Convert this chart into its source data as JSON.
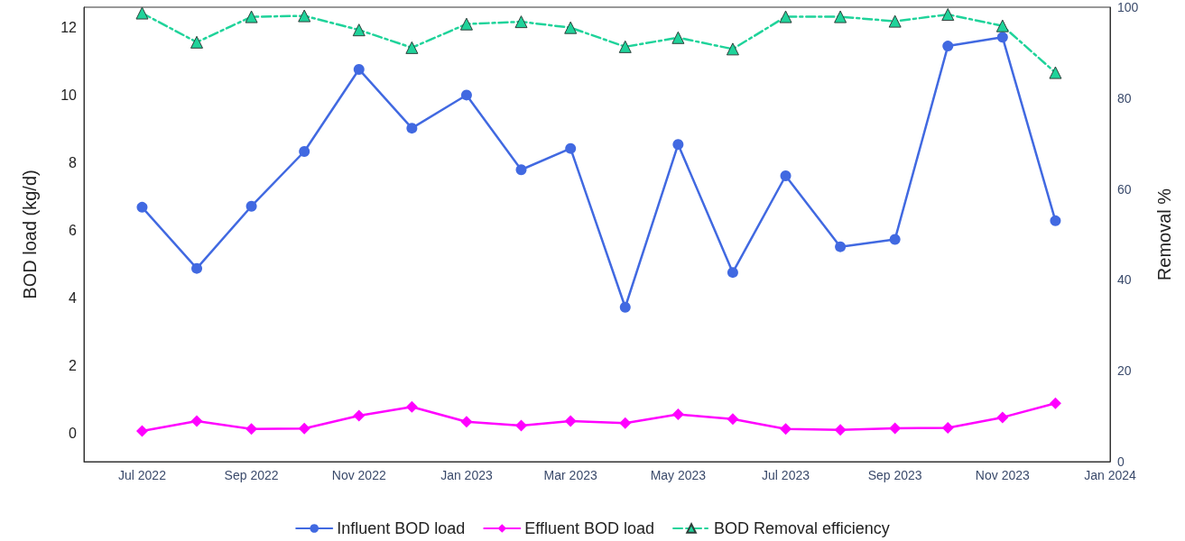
{
  "chart_data": {
    "type": "line",
    "ylabel": "BOD load (kg/d)",
    "y2label": "Removal %",
    "x": [
      "2022-07",
      "2022-08",
      "2022-09",
      "2022-10",
      "2022-11",
      "2022-12",
      "2023-01",
      "2023-02",
      "2023-03",
      "2023-04",
      "2023-05",
      "2023-06",
      "2023-07",
      "2023-08",
      "2023-09",
      "2023-10",
      "2023-11",
      "2023-12"
    ],
    "xlim": [
      "2022-05-29",
      "2024-01-01"
    ],
    "xticks": [
      {
        "value": "2022-07",
        "label": "Jul 2022"
      },
      {
        "value": "2022-09",
        "label": "Sep 2022"
      },
      {
        "value": "2022-11",
        "label": "Nov 2022"
      },
      {
        "value": "2023-01",
        "label": "Jan 2023"
      },
      {
        "value": "2023-03",
        "label": "Mar 2023"
      },
      {
        "value": "2023-05",
        "label": "May 2023"
      },
      {
        "value": "2023-07",
        "label": "Jul 2023"
      },
      {
        "value": "2023-09",
        "label": "Sep 2023"
      },
      {
        "value": "2023-11",
        "label": "Nov 2023"
      },
      {
        "value": "2024-01",
        "label": "Jan 2024"
      }
    ],
    "ylim": [
      -0.85,
      12.6
    ],
    "yticks": [
      0,
      2,
      4,
      6,
      8,
      10,
      12
    ],
    "y2lim": [
      0,
      100
    ],
    "y2ticks": [
      0,
      20,
      40,
      60,
      80,
      100
    ],
    "grid": false,
    "legend": "bottom",
    "series": [
      {
        "name": "Influent BOD load",
        "color": "#4169e1",
        "marker": "circle",
        "line_style": "solid",
        "values": [
          6.68,
          4.87,
          6.71,
          8.33,
          10.76,
          9.02,
          10.0,
          7.79,
          8.42,
          3.72,
          8.54,
          4.75,
          7.61,
          5.51,
          5.73,
          11.45,
          11.71,
          6.28
        ]
      },
      {
        "name": "Effluent BOD load",
        "color": "#ff00ff",
        "marker": "diamond",
        "line_style": "solid",
        "values": [
          0.06,
          0.35,
          0.12,
          0.13,
          0.51,
          0.77,
          0.33,
          0.22,
          0.35,
          0.29,
          0.55,
          0.41,
          0.12,
          0.09,
          0.14,
          0.15,
          0.46,
          0.88
        ]
      },
      {
        "name": "BOD Removal efficiency",
        "color": "#1fd39a",
        "marker": "triangle",
        "line_style": "dashed",
        "axis": "y2",
        "values": [
          98.7,
          92.3,
          97.9,
          98.1,
          95.0,
          91.1,
          96.3,
          96.8,
          95.5,
          91.3,
          93.3,
          90.8,
          97.9,
          97.9,
          96.9,
          98.4,
          95.9,
          85.6
        ]
      }
    ]
  }
}
